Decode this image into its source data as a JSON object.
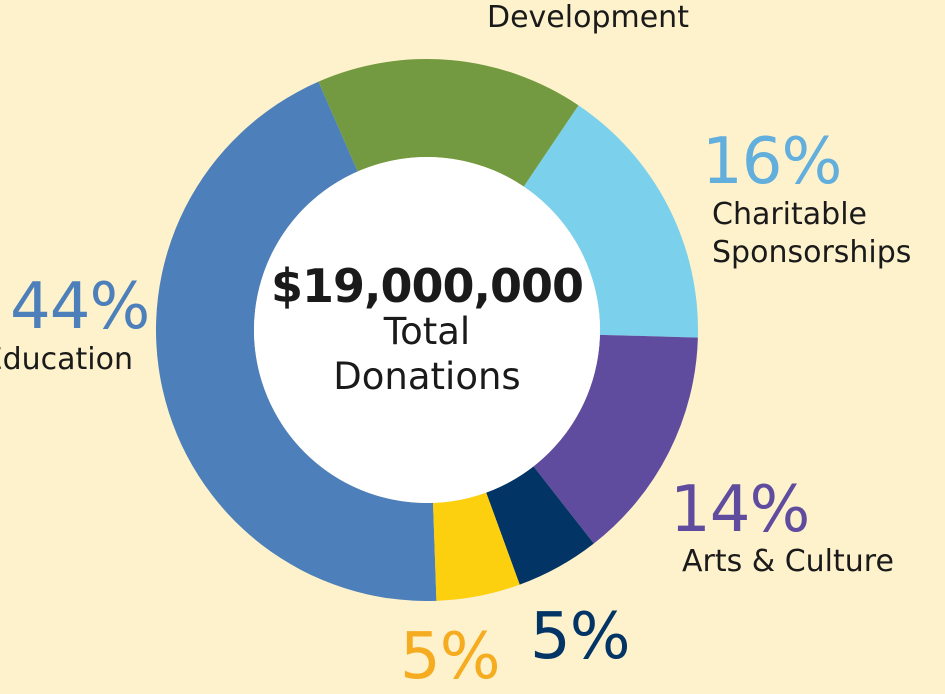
{
  "colors": {
    "background": "#fdf2cc",
    "center": "#ffffff",
    "education": "#4d7fba",
    "economic_development": "#739a40",
    "charitable_sponsorships": "#7bd0ec",
    "arts_culture": "#604c9e",
    "navy_segment": "#033466",
    "yellow_segment": "#fccf0f"
  },
  "center": {
    "amount": "$19,000,000",
    "label_line1": "Total",
    "label_line2": "Donations"
  },
  "chart_data": {
    "type": "pie",
    "variant": "donut",
    "categories": [
      "Education",
      "Development",
      "Charitable Sponsorships",
      "Arts & Culture",
      "",
      ""
    ],
    "values": [
      44,
      16,
      16,
      14,
      5,
      5
    ],
    "total_label": "$19,000,000 Total Donations"
  },
  "labels": {
    "education_pct": "44%",
    "education_name": "Education",
    "development_name": "Development",
    "charitable_pct": "16%",
    "charitable_line1": "Charitable",
    "charitable_line2": "Sponsorships",
    "arts_pct": "14%",
    "arts_name": "Arts & Culture",
    "yellow_pct": "5%",
    "navy_pct": "5%"
  }
}
